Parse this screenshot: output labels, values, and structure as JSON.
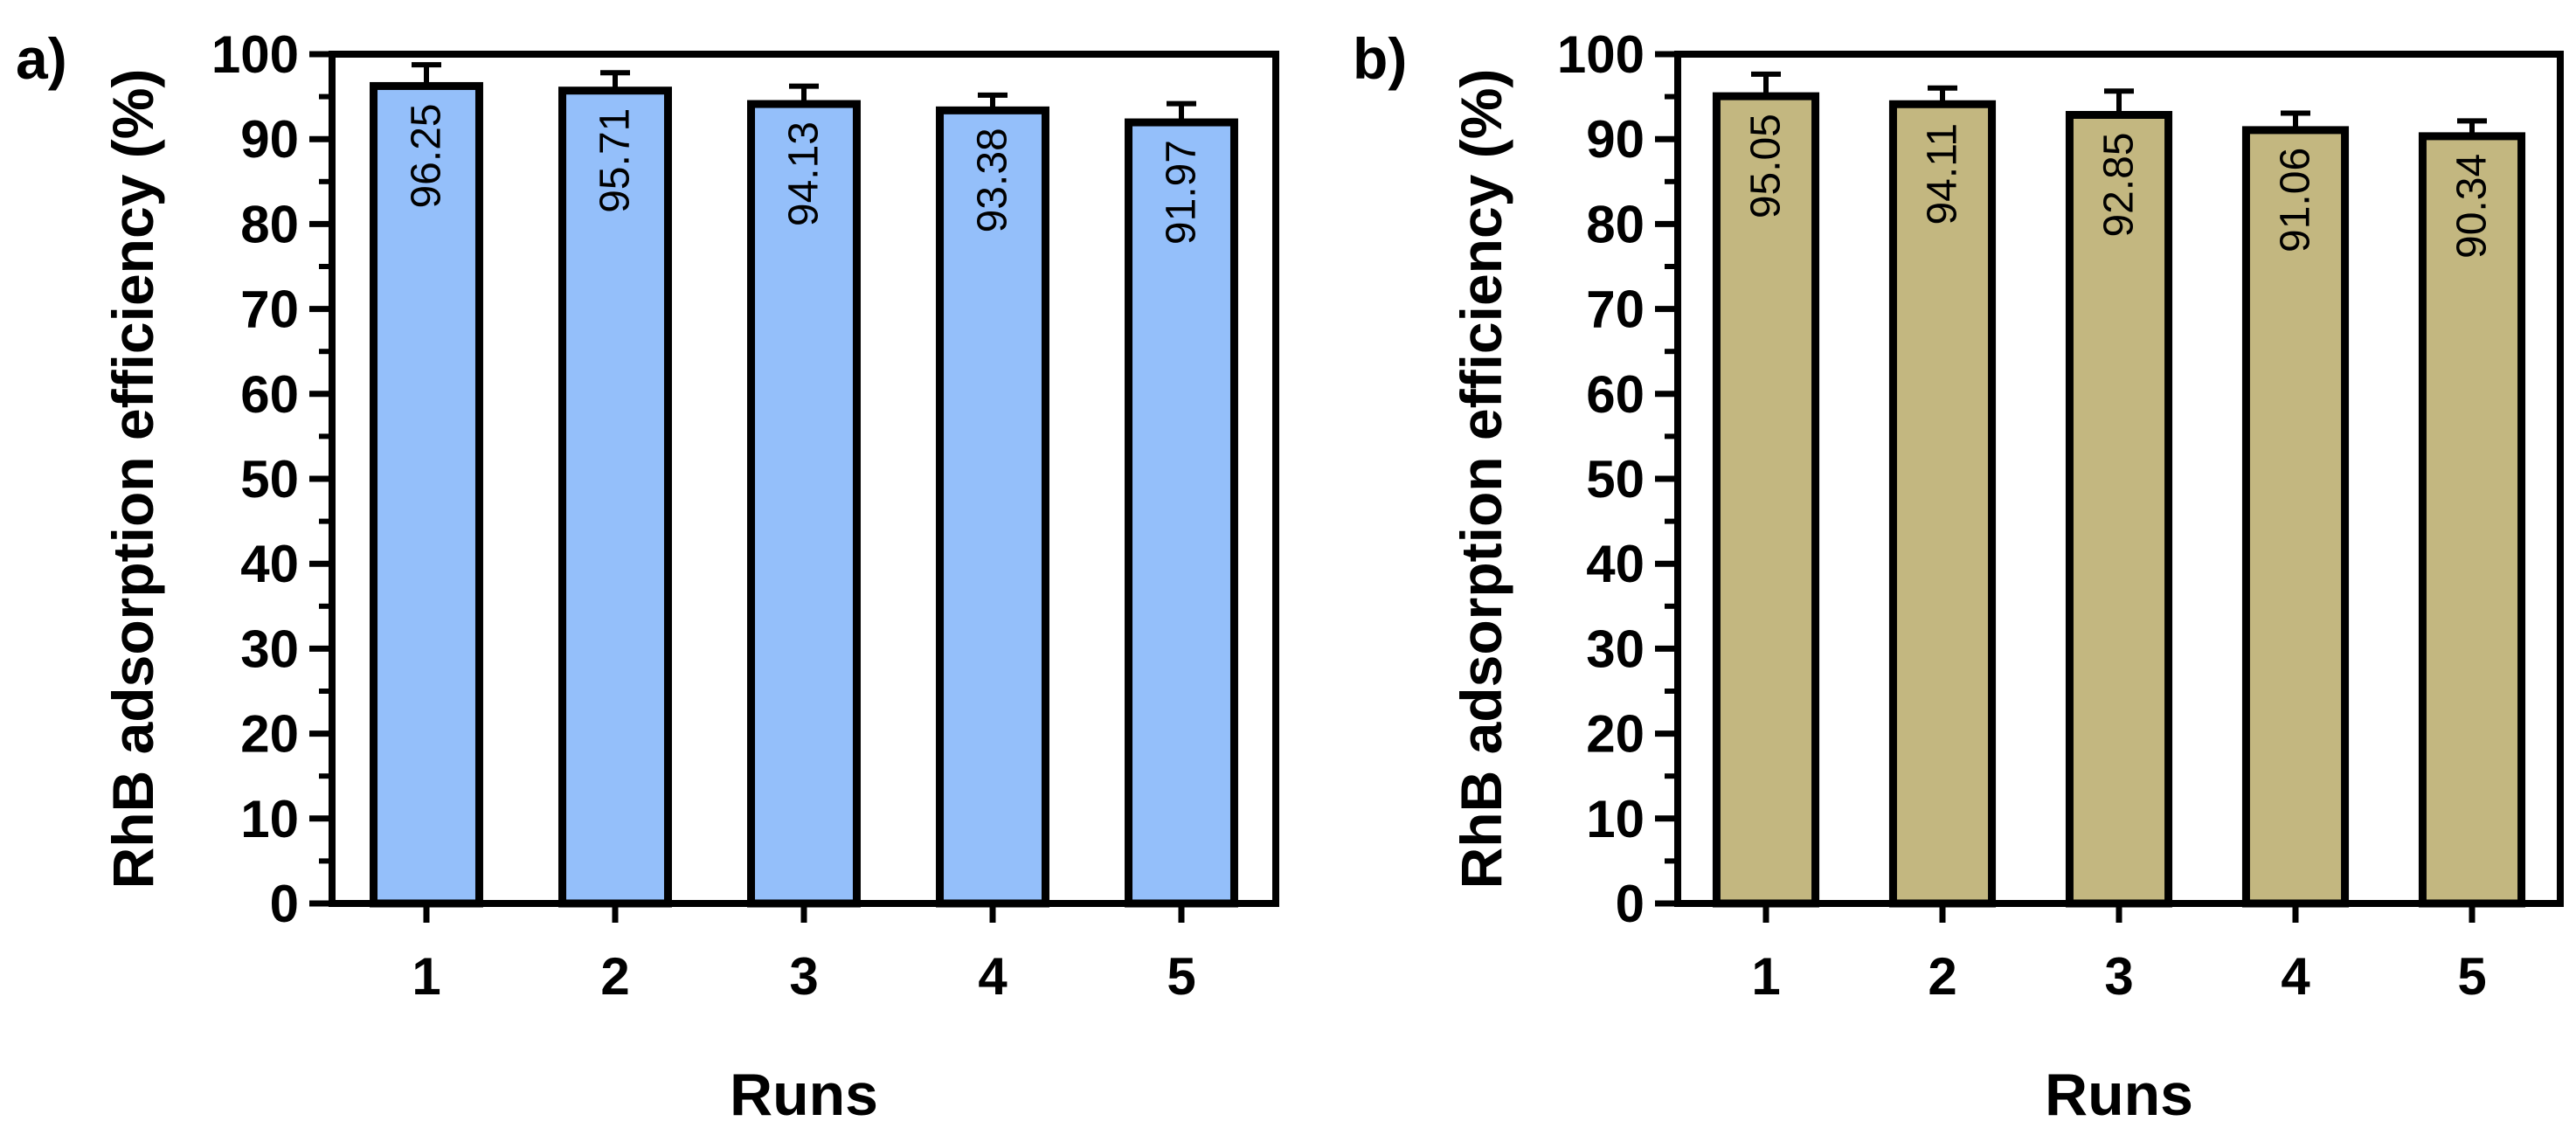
{
  "chart_data": [
    {
      "type": "bar",
      "panel_label": "a)",
      "categories": [
        "1",
        "2",
        "3",
        "4",
        "5"
      ],
      "values": [
        96.25,
        95.71,
        94.13,
        93.38,
        91.97
      ],
      "value_labels": [
        "96.25",
        "95.71",
        "94.13",
        "93.38",
        "91.97"
      ],
      "error": [
        2.5,
        2.1,
        2.1,
        1.8,
        2.2
      ],
      "xlabel": "Runs",
      "ylabel": "RhB adsorption efficiency (%)",
      "ylim": [
        0,
        100
      ],
      "yticks": [
        "0",
        "10",
        "20",
        "30",
        "40",
        "50",
        "60",
        "70",
        "80",
        "90",
        "100"
      ],
      "bar_color": "#94bffa",
      "grid": false,
      "legend": false
    },
    {
      "type": "bar",
      "panel_label": "b)",
      "categories": [
        "1",
        "2",
        "3",
        "4",
        "5"
      ],
      "values": [
        95.05,
        94.11,
        92.85,
        91.06,
        90.34
      ],
      "value_labels": [
        "95.05",
        "94.11",
        "92.85",
        "91.06",
        "90.34"
      ],
      "error": [
        2.6,
        1.9,
        2.8,
        2.0,
        1.8
      ],
      "xlabel": "Runs",
      "ylabel": "RhB adsorption efficiency (%)",
      "ylim": [
        0,
        100
      ],
      "yticks": [
        "0",
        "10",
        "20",
        "30",
        "40",
        "50",
        "60",
        "70",
        "80",
        "90",
        "100"
      ],
      "bar_color": "#c3b780",
      "grid": false,
      "legend": false
    }
  ]
}
